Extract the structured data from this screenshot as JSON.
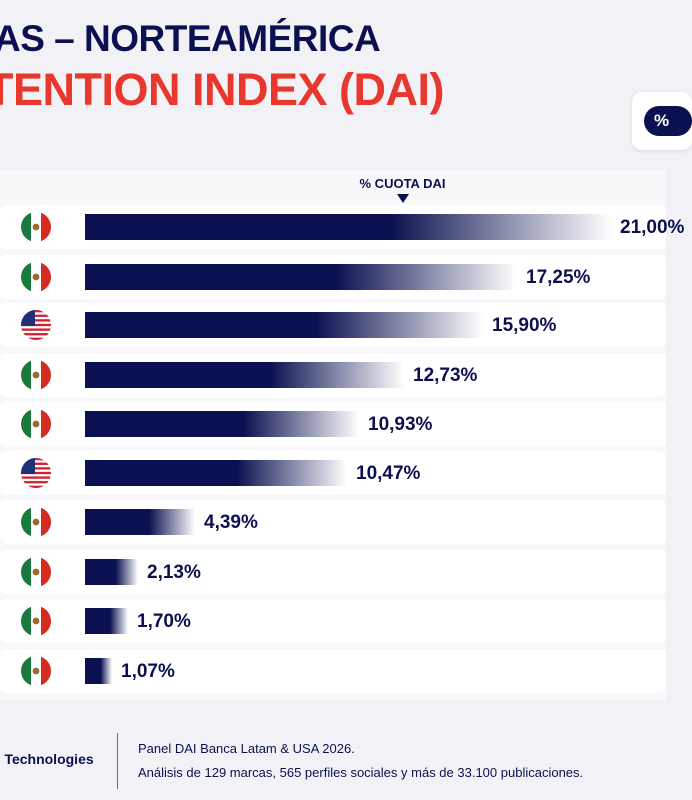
{
  "header": {
    "title_line1": "AS – NORTEAMÉRICA",
    "title_line2": "TENTION INDEX (DAI)",
    "toggle_label": "%"
  },
  "chart_data": {
    "type": "bar",
    "orientation": "horizontal",
    "metric_label": "% CUOTA DAI",
    "axis_max": 21.0,
    "rows": [
      {
        "flag": "mexico-flag-icon",
        "value": 21.0,
        "label": "21,00%"
      },
      {
        "flag": "mexico-flag-icon",
        "value": 17.25,
        "label": "17,25%"
      },
      {
        "flag": "usa-flag-icon",
        "value": 15.9,
        "label": "15,90%"
      },
      {
        "flag": "mexico-flag-icon",
        "value": 12.73,
        "label": "12,73%"
      },
      {
        "flag": "mexico-flag-icon",
        "value": 10.93,
        "label": "10,93%"
      },
      {
        "flag": "usa-flag-icon",
        "value": 10.47,
        "label": "10,47%"
      },
      {
        "flag": "mexico-flag-icon",
        "value": 4.39,
        "label": "4,39%"
      },
      {
        "flag": "mexico-flag-icon",
        "value": 2.13,
        "label": "2,13%"
      },
      {
        "flag": "mexico-flag-icon",
        "value": 1.7,
        "label": "1,70%"
      },
      {
        "flag": "mexico-flag-icon",
        "value": 1.07,
        "label": "1,07%"
      }
    ]
  },
  "colors": {
    "bar": "#0b1150",
    "title_navy": "#0b1150",
    "title_red": "#e8372c"
  },
  "footer": {
    "company": "n Technologies",
    "source": "Panel DAI Banca Latam & USA 2026.",
    "analysis": "Análisis de 129 marcas, 565 perfiles sociales y más de 33.100 publicaciones."
  }
}
